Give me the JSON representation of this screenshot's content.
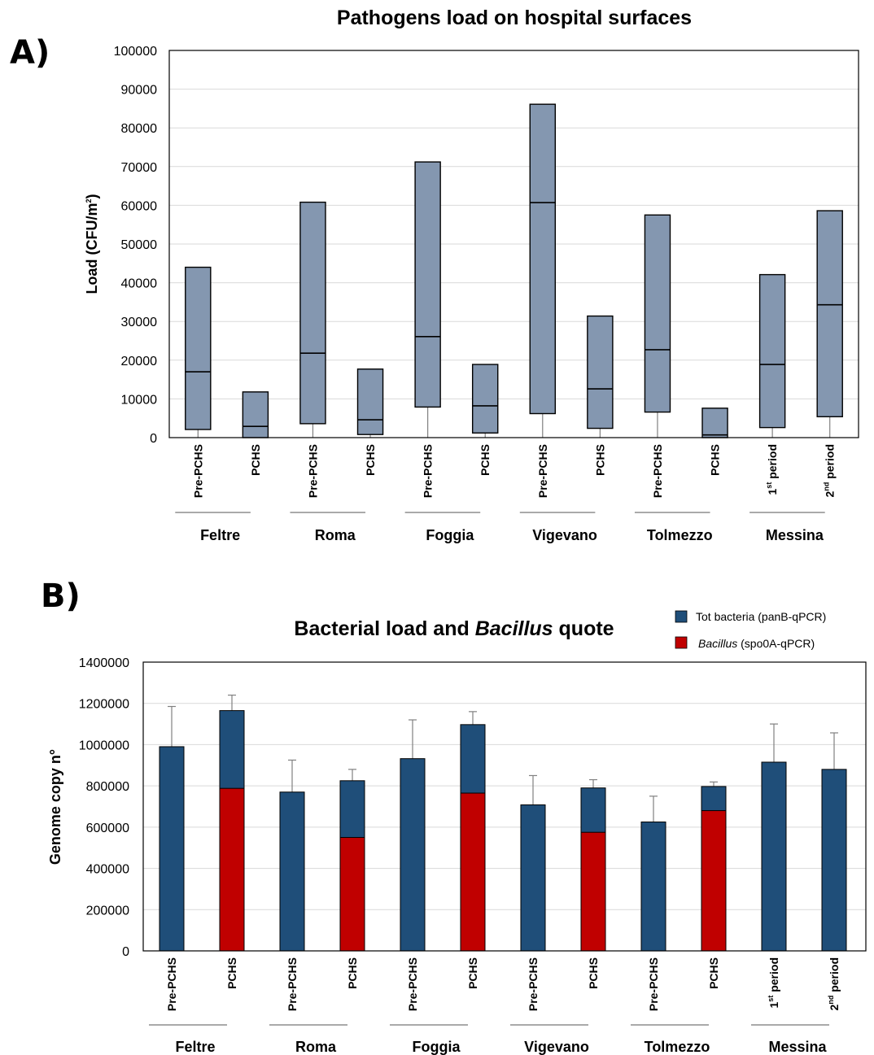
{
  "chart_data": [
    {
      "panel_label": "A)",
      "type": "box",
      "title": "Pathogens load on hospital surfaces",
      "ylabel_main": "Load (CFU/m",
      "ylabel_sup": "2",
      "ylabel_end": ")",
      "ylim": [
        0,
        100000
      ],
      "yticks": [
        "0",
        "10000",
        "20000",
        "30000",
        "40000",
        "50000",
        "60000",
        "70000",
        "80000",
        "90000",
        "100000"
      ],
      "grid": true,
      "colors": {
        "box": "#8497b0"
      },
      "groups": [
        {
          "name": "Feltre",
          "categories": [
            {
              "label": "Pre-PCHS"
            },
            {
              "label": "PCHS"
            }
          ]
        },
        {
          "name": "Roma",
          "categories": [
            {
              "label": "Pre-PCHS"
            },
            {
              "label": "PCHS"
            }
          ]
        },
        {
          "name": "Foggia",
          "categories": [
            {
              "label": "Pre-PCHS"
            },
            {
              "label": "PCHS"
            }
          ]
        },
        {
          "name": "Vigevano",
          "categories": [
            {
              "label": "Pre-PCHS"
            },
            {
              "label": "PCHS"
            }
          ]
        },
        {
          "name": "Tolmezzo",
          "categories": [
            {
              "label": "Pre-PCHS"
            },
            {
              "label": "PCHS"
            }
          ]
        },
        {
          "name": "Messina",
          "categories": [
            {
              "label": "1",
              "sup": "st",
              "rest": " period"
            },
            {
              "label": "2",
              "sup": "nd",
              "rest": " period"
            }
          ]
        }
      ],
      "boxes": [
        {
          "whisker_low": 0,
          "q1": 2100,
          "median": 17000,
          "q3": 44000
        },
        {
          "whisker_low": 0,
          "q1": 0,
          "median": 2900,
          "q3": 11800
        },
        {
          "whisker_low": 0,
          "q1": 3600,
          "median": 21800,
          "q3": 60800
        },
        {
          "whisker_low": 0,
          "q1": 800,
          "median": 4600,
          "q3": 17700
        },
        {
          "whisker_low": 0,
          "q1": 7900,
          "median": 26100,
          "q3": 71200
        },
        {
          "whisker_low": 0,
          "q1": 1200,
          "median": 8200,
          "q3": 18900
        },
        {
          "whisker_low": 0,
          "q1": 6200,
          "median": 60700,
          "q3": 86100
        },
        {
          "whisker_low": 0,
          "q1": 2400,
          "median": 12600,
          "q3": 31400
        },
        {
          "whisker_low": 0,
          "q1": 6600,
          "median": 22700,
          "q3": 57500
        },
        {
          "whisker_low": 0,
          "q1": 0,
          "median": 700,
          "q3": 7600
        },
        {
          "whisker_low": 0,
          "q1": 2600,
          "median": 18900,
          "q3": 42100
        },
        {
          "whisker_low": 0,
          "q1": 5400,
          "median": 34300,
          "q3": 58600
        }
      ]
    },
    {
      "panel_label": "B)",
      "type": "bar",
      "title_pre": "Bacterial load and ",
      "title_italic": "Bacillus",
      "title_post": " quote",
      "ylabel": "Genome copy n°",
      "ylim": [
        0,
        1400000
      ],
      "yticks": [
        "0",
        "200000",
        "400000",
        "600000",
        "800000",
        "1000000",
        "1200000",
        "1400000"
      ],
      "grid": true,
      "legend_position": "top-right",
      "series": [
        {
          "name": "Tot bacteria (panB-qPCR)",
          "color": "#1f4e79",
          "values": [
            990000,
            1165000,
            770000,
            825000,
            932000,
            1097000,
            708000,
            790000,
            625000,
            797000,
            915000,
            880000
          ],
          "error": [
            195000,
            75000,
            155000,
            55000,
            188000,
            63000,
            142000,
            40000,
            125000,
            22000,
            185000,
            177000
          ]
        },
        {
          "name_italic": "Bacillus",
          "name_rest": " (spo0A-qPCR)",
          "color": "#c00000",
          "values": [
            null,
            788000,
            null,
            550000,
            null,
            765000,
            null,
            575000,
            null,
            680000,
            null,
            null
          ]
        }
      ],
      "groups": [
        {
          "name": "Feltre",
          "categories": [
            {
              "label": "Pre-PCHS"
            },
            {
              "label": "PCHS"
            }
          ]
        },
        {
          "name": "Roma",
          "categories": [
            {
              "label": "Pre-PCHS"
            },
            {
              "label": "PCHS"
            }
          ]
        },
        {
          "name": "Foggia",
          "categories": [
            {
              "label": "Pre-PCHS"
            },
            {
              "label": "PCHS"
            }
          ]
        },
        {
          "name": "Vigevano",
          "categories": [
            {
              "label": "Pre-PCHS"
            },
            {
              "label": "PCHS"
            }
          ]
        },
        {
          "name": "Tolmezzo",
          "categories": [
            {
              "label": "Pre-PCHS"
            },
            {
              "label": "PCHS"
            }
          ]
        },
        {
          "name": "Messina",
          "categories": [
            {
              "label": "1",
              "sup": "st",
              "rest": " period"
            },
            {
              "label": "2",
              "sup": "nd",
              "rest": " period"
            }
          ]
        }
      ]
    }
  ]
}
